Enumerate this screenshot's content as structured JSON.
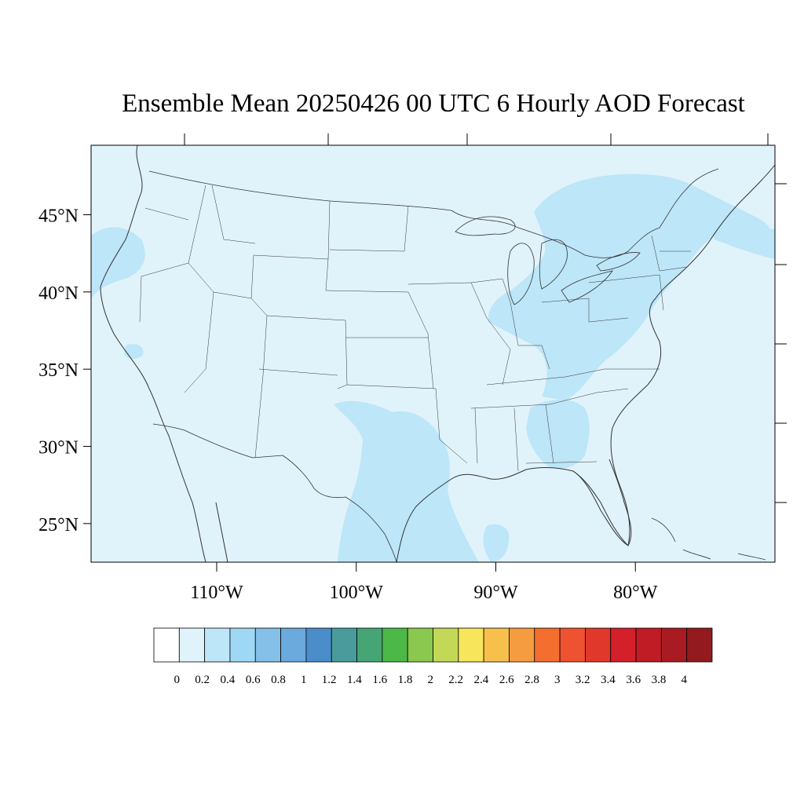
{
  "title": "Ensemble Mean 20250426 00 UTC 6 Hourly AOD Forecast",
  "map": {
    "lon_range": [
      -119,
      -70
    ],
    "lat_range": [
      22.5,
      49.5
    ],
    "lat_ticks": [
      {
        "value": 45,
        "label": "45°N"
      },
      {
        "value": 40,
        "label": "40°N"
      },
      {
        "value": 35,
        "label": "35°N"
      },
      {
        "value": 30,
        "label": "30°N"
      },
      {
        "value": 25,
        "label": "25°N"
      }
    ],
    "lon_ticks": [
      {
        "value": -110,
        "label": "110°W"
      },
      {
        "value": -100,
        "label": "100°W"
      },
      {
        "value": -90,
        "label": "90°W"
      },
      {
        "value": -80,
        "label": "80°W"
      }
    ],
    "background_color": "#e0f3fb",
    "field_color": "#bde6f8",
    "boundary_color": "#333333"
  },
  "colorbar": {
    "labels": [
      "0",
      "0.2",
      "0.4",
      "0.6",
      "0.8",
      "1",
      "1.2",
      "1.4",
      "1.6",
      "1.8",
      "2",
      "2.2",
      "2.4",
      "2.6",
      "2.8",
      "3",
      "3.2",
      "3.4",
      "3.6",
      "3.8",
      "4"
    ],
    "colors": [
      "#ffffff",
      "#e0f3fb",
      "#bde6f8",
      "#9fd8f5",
      "#85c0e8",
      "#6aaadd",
      "#4b8dcb",
      "#4a9c9c",
      "#46a575",
      "#4cb848",
      "#8bc84f",
      "#c4d858",
      "#f7e55c",
      "#f7c04c",
      "#f69c40",
      "#f46e30",
      "#ee5230",
      "#e0392b",
      "#d4202b",
      "#bf1c26",
      "#a91a22",
      "#931a1e"
    ]
  }
}
